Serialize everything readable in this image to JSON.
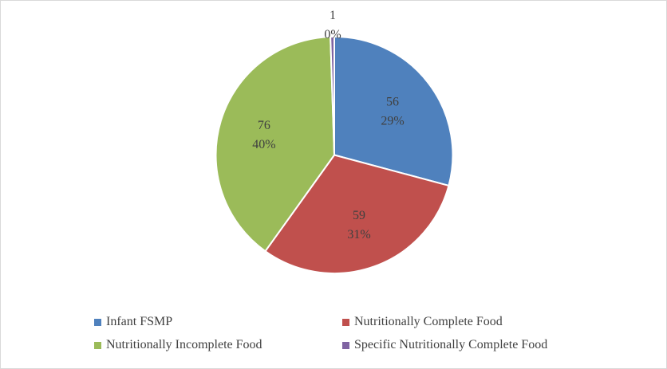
{
  "chart_data": {
    "type": "pie",
    "categories": [
      "Infant FSMP",
      "Nutritionally Complete Food",
      "Specific Nutritionally Complete Food",
      "Nutritionally Incomplete Food"
    ],
    "slices": [
      {
        "label": "Infant FSMP",
        "value": 56,
        "percent_label": "29%",
        "color": "#4F81BD"
      },
      {
        "label": "Nutritionally Complete Food",
        "value": 59,
        "percent_label": "31%",
        "color": "#C0504D"
      },
      {
        "label": "Nutritionally Incomplete Food",
        "value": 76,
        "percent_label": "40%",
        "color": "#9BBB59"
      },
      {
        "label": "Specific Nutritionally Complete Food",
        "value": 1,
        "percent_label": "0%",
        "color": "#8064A2"
      }
    ],
    "legend": [
      "Infant FSMP",
      "Nutritionally Complete Food",
      "Nutritionally Incomplete Food",
      "Specific Nutritionally Complete Food"
    ],
    "legend_placement": "bottom",
    "start_angle": "12 o'clock",
    "direction": "clockwise"
  }
}
